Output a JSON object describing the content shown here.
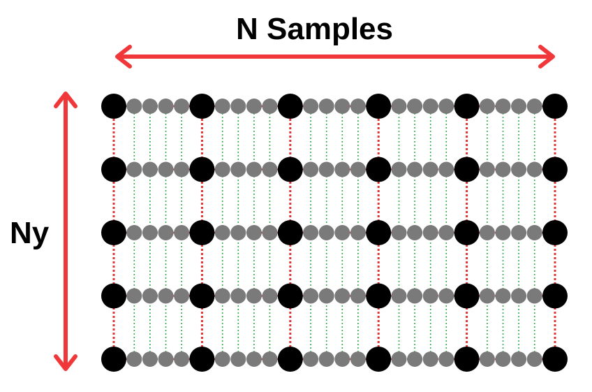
{
  "labels": {
    "x_axis": "N Samples",
    "y_axis": "Ny"
  },
  "grid": {
    "rows": 5,
    "major_columns": 6,
    "minor_per_gap": 4
  },
  "colors": {
    "arrow": "#f0383a",
    "major_node": "#000000",
    "minor_node": "#7a7a7a",
    "major_link": "#e03434",
    "minor_link": "#2fae4a",
    "text": "#000000"
  },
  "icons": {
    "x_arrow": "double-headed-arrow-horizontal",
    "y_arrow": "double-headed-arrow-vertical"
  }
}
